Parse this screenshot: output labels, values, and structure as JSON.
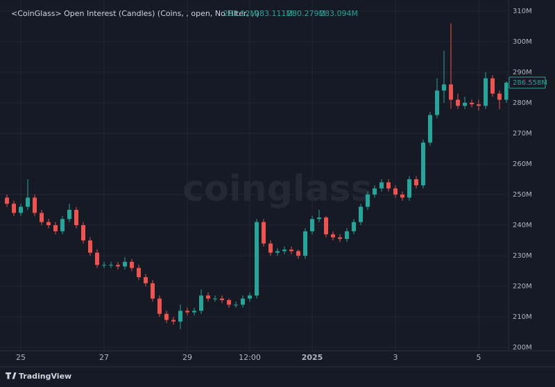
{
  "chart_data": {
    "type": "candlestick",
    "title": "<CoinGlass> Open Interest (Candles) (Coins, , open, No Filter, , )",
    "ohlc_legend": [
      "281.12M",
      "283.111M",
      "280.279M",
      "283.094M"
    ],
    "watermark": "coinglass",
    "footer": "TradingView",
    "last_price_label": "286.558M",
    "up_color": "#26a69a",
    "down_color": "#ef5350",
    "grid": true,
    "categories": [
      null,
      null,
      "25",
      null,
      null,
      null,
      null,
      null,
      null,
      null,
      null,
      null,
      null,
      null,
      "27",
      null,
      null,
      null,
      null,
      null,
      null,
      null,
      null,
      null,
      null,
      null,
      "29",
      null,
      null,
      null,
      null,
      null,
      null,
      null,
      null,
      "12:00",
      null,
      null,
      null,
      null,
      null,
      null,
      null,
      null,
      "2025",
      null,
      null,
      null,
      null,
      null,
      null,
      null,
      null,
      null,
      null,
      null,
      "3",
      null,
      null,
      null,
      null,
      null,
      null,
      null,
      null,
      null,
      null,
      null,
      "5",
      null,
      null,
      null,
      null
    ],
    "open": [
      249,
      247,
      244,
      246,
      249,
      244,
      241,
      240,
      238,
      242,
      245,
      240,
      235,
      231,
      227,
      227,
      227,
      226.5,
      228,
      226,
      223,
      221,
      216,
      211,
      209,
      208.5,
      212,
      211.5,
      212,
      217,
      216,
      216,
      215.5,
      214,
      214,
      216,
      217,
      241,
      234,
      231,
      231.5,
      232,
      231.5,
      230,
      238,
      242,
      242.5,
      237,
      236,
      235.5,
      238,
      241,
      246,
      250,
      252,
      254,
      252,
      250,
      249,
      255,
      253,
      267,
      276,
      284,
      286,
      281,
      279,
      280,
      279.5,
      279,
      288,
      283,
      281
    ],
    "high": [
      250,
      248,
      247,
      255,
      250,
      245,
      242,
      241,
      243,
      247,
      246,
      241,
      236,
      232,
      228,
      228,
      228,
      229.5,
      229,
      227,
      224,
      222,
      217,
      212,
      210,
      214,
      213,
      213,
      219,
      218,
      217,
      217,
      216,
      215,
      217,
      218,
      242,
      242,
      235,
      232.5,
      233,
      233,
      232,
      239,
      243,
      245,
      243,
      238,
      237,
      239,
      242,
      247,
      251,
      253,
      255,
      255,
      253,
      251,
      256,
      256,
      268,
      277,
      288,
      297,
      306,
      283,
      282,
      281,
      281,
      290,
      289,
      284,
      287
    ],
    "low": [
      246,
      243,
      243,
      245,
      243,
      240,
      239,
      237,
      237,
      241,
      239,
      234,
      230,
      226,
      226,
      226,
      225.5,
      225.5,
      225,
      222,
      220,
      215,
      210,
      208,
      207.5,
      206,
      210.5,
      210.5,
      211,
      215,
      215,
      214.5,
      213,
      213,
      213,
      215,
      216,
      233,
      230,
      230,
      230.5,
      230.5,
      229,
      229,
      237,
      241,
      236,
      235,
      234.5,
      234.5,
      237,
      240,
      245,
      249,
      251,
      251,
      249,
      248,
      248,
      252,
      252,
      266,
      275,
      280,
      278,
      278,
      278,
      278.5,
      277.5,
      278,
      282,
      278,
      280
    ],
    "close": [
      247,
      244,
      246,
      249,
      244,
      241,
      240,
      238,
      242,
      245,
      240,
      235,
      231,
      227,
      227,
      227,
      226.5,
      228,
      226,
      223,
      221,
      216,
      211,
      209,
      208.5,
      212,
      211.5,
      212,
      217,
      216,
      216,
      215.5,
      214,
      214,
      216,
      217,
      241,
      234,
      231,
      231.5,
      232,
      231.5,
      230,
      238,
      242,
      242.5,
      237,
      236,
      235.5,
      238,
      241,
      246,
      250,
      252,
      254,
      252,
      250,
      249,
      255,
      253,
      267,
      276,
      284,
      286,
      281,
      279,
      280,
      279.5,
      279,
      288,
      283,
      281,
      286.558
    ],
    "ylim": [
      198.9,
      313.6
    ],
    "yticks": [
      {
        "value": 200,
        "label": "200M"
      },
      {
        "value": 210,
        "label": "210M"
      },
      {
        "value": 220,
        "label": "220M"
      },
      {
        "value": 230,
        "label": "230M"
      },
      {
        "value": 240,
        "label": "240M"
      },
      {
        "value": 250,
        "label": "250M"
      },
      {
        "value": 260,
        "label": "260M"
      },
      {
        "value": 270,
        "label": "270M"
      },
      {
        "value": 280,
        "label": "280M"
      },
      {
        "value": 290,
        "label": "290M"
      },
      {
        "value": 300,
        "label": "300M"
      },
      {
        "value": 310,
        "label": "310M"
      }
    ]
  }
}
